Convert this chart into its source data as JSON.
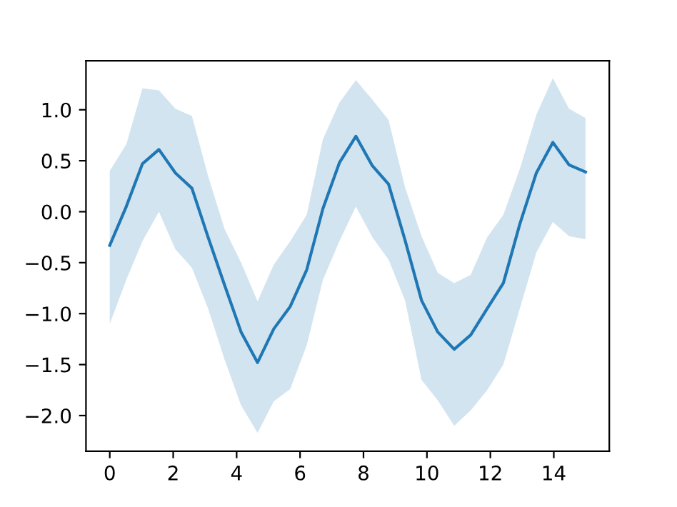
{
  "chart_data": {
    "type": "line",
    "x": [
      0,
      0.52,
      1.03,
      1.55,
      2.07,
      2.59,
      3.1,
      3.62,
      4.14,
      4.66,
      5.17,
      5.69,
      6.21,
      6.72,
      7.24,
      7.76,
      8.28,
      8.79,
      9.31,
      9.83,
      10.34,
      10.86,
      11.38,
      11.9,
      12.41,
      12.93,
      13.45,
      13.97,
      14.48,
      15.0
    ],
    "series": [
      {
        "color": "#1f77b4",
        "values": [
          -0.33,
          0.05,
          0.47,
          0.61,
          0.38,
          0.23,
          -0.25,
          -0.72,
          -1.18,
          -1.48,
          -1.15,
          -0.93,
          -0.57,
          0.03,
          0.48,
          0.74,
          0.45,
          0.27,
          -0.28,
          -0.87,
          -1.18,
          -1.35,
          -1.21,
          -0.95,
          -0.7,
          -0.12,
          0.38,
          0.68,
          0.46,
          0.39
        ],
        "upper": [
          0.4,
          0.66,
          1.21,
          1.19,
          1.01,
          0.94,
          0.35,
          -0.17,
          -0.5,
          -0.88,
          -0.52,
          -0.29,
          -0.03,
          0.71,
          1.07,
          1.29,
          1.1,
          0.9,
          0.24,
          -0.24,
          -0.6,
          -0.7,
          -0.62,
          -0.25,
          -0.03,
          0.42,
          0.95,
          1.31,
          1.01,
          0.92
        ],
        "lower": [
          -1.1,
          -0.67,
          -0.29,
          0.0,
          -0.37,
          -0.55,
          -0.95,
          -1.45,
          -1.9,
          -2.17,
          -1.86,
          -1.74,
          -1.31,
          -0.67,
          -0.29,
          0.05,
          -0.25,
          -0.47,
          -0.87,
          -1.65,
          -1.85,
          -2.1,
          -1.95,
          -1.75,
          -1.5,
          -0.95,
          -0.4,
          -0.1,
          -0.24,
          -0.27
        ]
      }
    ],
    "xlim": [
      -0.75,
      15.75
    ],
    "ylim": [
      -2.35,
      1.48
    ],
    "xticks": [
      0,
      2,
      4,
      6,
      8,
      10,
      12,
      14
    ],
    "yticks": [
      {
        "value": -2.0,
        "label": "−2.0"
      },
      {
        "value": -1.5,
        "label": "−1.5"
      },
      {
        "value": -1.0,
        "label": "−1.0"
      },
      {
        "value": -0.5,
        "label": "−0.5"
      },
      {
        "value": 0.0,
        "label": "0.0"
      },
      {
        "value": 0.5,
        "label": "0.5"
      },
      {
        "value": 1.0,
        "label": "1.0"
      }
    ],
    "grid": false
  }
}
